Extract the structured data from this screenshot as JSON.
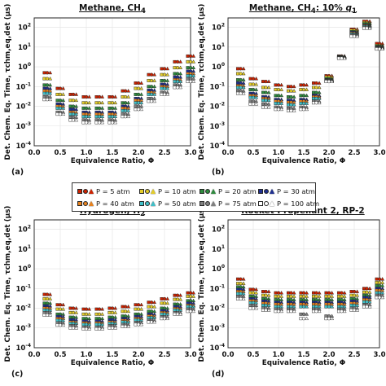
{
  "figure": {
    "shared_ylabel": "Det. Chem. Eq. Time, τchm,eq,det (μs)",
    "shared_xlabel": "Equivalence Ratio, Φ"
  },
  "panels": [
    {
      "id": "a",
      "title_html": "Methane, CH<sub>4</sub>",
      "label": "(a)"
    },
    {
      "id": "b",
      "title_html": "Methane, CH<sub>4</sub>: 10% <i>q</i><sub>1</sub>",
      "label": "(b)"
    },
    {
      "id": "c",
      "title_html": "Hydrogen, H<sub>2</sub>",
      "label": "(c)"
    },
    {
      "id": "d",
      "title_html": "Rocket Propellant 2, RP-2",
      "label": "(d)"
    }
  ],
  "legend": {
    "items": [
      {
        "label": "P = 5 atm",
        "color": "#cc2200"
      },
      {
        "label": "P = 10 atm",
        "color": "#e3cc2a"
      },
      {
        "label": "P = 20 atm",
        "color": "#2e8b3e"
      },
      {
        "label": "P = 30 atm",
        "color": "#1f2f8f"
      },
      {
        "label": "P = 40 atm",
        "color": "#e8821e"
      },
      {
        "label": "P = 50 atm",
        "color": "#40c0c8"
      },
      {
        "label": "P = 75 atm",
        "color": "#808080"
      },
      {
        "label": "P = 100 atm",
        "color": "#ffffff"
      }
    ]
  },
  "chart_data": [
    {
      "type": "scatter",
      "panel": "a",
      "title": "Methane, CH4",
      "xlabel": "Equivalence Ratio, Φ",
      "ylabel": "Det. Chem. Eq. Time, τchm,eq,det (μs)",
      "xlim": [
        0,
        3
      ],
      "ylim": [
        0.0001,
        300
      ],
      "yscale": "log",
      "grid": true,
      "x": [
        0.25,
        0.5,
        0.75,
        1.0,
        1.25,
        1.5,
        1.75,
        2.0,
        2.25,
        2.5,
        2.75,
        3.0
      ],
      "series": [
        {
          "name": "P = 5 atm",
          "values": [
            0.5,
            0.08,
            0.04,
            0.03,
            0.03,
            0.03,
            0.06,
            0.15,
            0.4,
            0.8,
            1.8,
            3.5
          ]
        },
        {
          "name": "P = 10 atm",
          "values": [
            0.25,
            0.04,
            0.02,
            0.015,
            0.015,
            0.015,
            0.03,
            0.08,
            0.2,
            0.4,
            0.9,
            1.8
          ]
        },
        {
          "name": "P = 20 atm",
          "values": [
            0.12,
            0.02,
            0.01,
            0.008,
            0.008,
            0.008,
            0.015,
            0.04,
            0.1,
            0.2,
            0.45,
            0.9
          ]
        },
        {
          "name": "P = 30 atm",
          "values": [
            0.08,
            0.013,
            0.007,
            0.005,
            0.005,
            0.005,
            0.01,
            0.025,
            0.065,
            0.13,
            0.3,
            0.6
          ]
        },
        {
          "name": "P = 40 atm",
          "values": [
            0.06,
            0.01,
            0.005,
            0.004,
            0.004,
            0.004,
            0.008,
            0.02,
            0.05,
            0.1,
            0.22,
            0.45
          ]
        },
        {
          "name": "P = 50 atm",
          "values": [
            0.045,
            0.008,
            0.004,
            0.003,
            0.003,
            0.003,
            0.006,
            0.015,
            0.04,
            0.08,
            0.18,
            0.35
          ]
        },
        {
          "name": "P = 75 atm",
          "values": [
            0.03,
            0.005,
            0.0028,
            0.002,
            0.002,
            0.002,
            0.004,
            0.01,
            0.025,
            0.05,
            0.12,
            0.25
          ]
        },
        {
          "name": "P = 100 atm",
          "values": [
            0.022,
            0.004,
            0.002,
            0.0015,
            0.0015,
            0.0015,
            0.003,
            0.007,
            0.018,
            0.04,
            0.09,
            0.18
          ]
        }
      ]
    },
    {
      "type": "scatter",
      "panel": "b",
      "title": "Methane, CH4: 10% q1",
      "xlabel": "Equivalence Ratio, Φ",
      "ylabel": "",
      "xlim": [
        0,
        3
      ],
      "ylim": [
        0.0001,
        300
      ],
      "yscale": "log",
      "grid": true,
      "x": [
        0.25,
        0.5,
        0.75,
        1.0,
        1.25,
        1.5,
        1.75,
        2.0,
        2.25,
        2.5,
        2.75,
        3.0
      ],
      "series": [
        {
          "name": "P = 5 atm",
          "values": [
            0.8,
            0.25,
            0.18,
            0.12,
            0.1,
            0.12,
            0.15,
            0.35,
            3.5,
            80,
            200,
            15
          ]
        },
        {
          "name": "P = 10 atm",
          "values": [
            0.45,
            0.13,
            0.09,
            0.07,
            0.06,
            0.07,
            0.09,
            0.3,
            3.3,
            70,
            170,
            12
          ]
        },
        {
          "name": "P = 20 atm",
          "values": [
            0.22,
            0.07,
            0.05,
            0.035,
            0.03,
            0.035,
            0.05,
            0.25,
            3.2,
            60,
            150,
            11
          ]
        },
        {
          "name": "P = 30 atm",
          "values": [
            0.15,
            0.045,
            0.03,
            0.022,
            0.02,
            0.022,
            0.035,
            0.22,
            3.1,
            55,
            130,
            10
          ]
        },
        {
          "name": "P = 40 atm",
          "values": [
            0.11,
            0.035,
            0.025,
            0.018,
            0.016,
            0.018,
            0.03,
            0.21,
            3.0,
            50,
            120,
            9.5
          ]
        },
        {
          "name": "P = 50 atm",
          "values": [
            0.09,
            0.028,
            0.02,
            0.014,
            0.012,
            0.014,
            0.025,
            0.2,
            2.9,
            45,
            110,
            9
          ]
        },
        {
          "name": "P = 75 atm",
          "values": [
            0.06,
            0.018,
            0.013,
            0.009,
            0.008,
            0.009,
            0.018,
            0.19,
            2.8,
            40,
            100,
            8.5
          ]
        },
        {
          "name": "P = 100 atm",
          "values": [
            0.045,
            0.013,
            0.009,
            0.007,
            0.006,
            0.007,
            0.015,
            0.18,
            2.7,
            35,
            90,
            8
          ]
        }
      ]
    },
    {
      "type": "scatter",
      "panel": "c",
      "title": "Hydrogen, H2",
      "xlabel": "Equivalence Ratio, Φ",
      "ylabel": "Det. Chem. Eq. Time, τchm,eq,det (μs)",
      "xlim": [
        0,
        3
      ],
      "ylim": [
        0.0001,
        300
      ],
      "yscale": "log",
      "grid": true,
      "x": [
        0.25,
        0.5,
        0.75,
        1.0,
        1.25,
        1.5,
        1.75,
        2.0,
        2.25,
        2.5,
        2.75,
        3.0
      ],
      "series": [
        {
          "name": "P = 5 atm",
          "values": [
            0.05,
            0.015,
            0.01,
            0.009,
            0.009,
            0.01,
            0.012,
            0.015,
            0.02,
            0.03,
            0.045,
            0.06
          ]
        },
        {
          "name": "P = 10 atm",
          "values": [
            0.03,
            0.009,
            0.006,
            0.005,
            0.005,
            0.006,
            0.007,
            0.009,
            0.012,
            0.018,
            0.028,
            0.04
          ]
        },
        {
          "name": "P = 20 atm",
          "values": [
            0.018,
            0.005,
            0.0035,
            0.003,
            0.003,
            0.0035,
            0.004,
            0.005,
            0.007,
            0.01,
            0.016,
            0.024
          ]
        },
        {
          "name": "P = 30 atm",
          "values": [
            0.013,
            0.0038,
            0.0026,
            0.0022,
            0.0022,
            0.0026,
            0.003,
            0.0038,
            0.005,
            0.0075,
            0.012,
            0.018
          ]
        },
        {
          "name": "P = 40 atm",
          "values": [
            0.01,
            0.003,
            0.002,
            0.0018,
            0.0018,
            0.002,
            0.0024,
            0.003,
            0.004,
            0.006,
            0.0095,
            0.014
          ]
        },
        {
          "name": "P = 50 atm",
          "values": [
            0.008,
            0.0024,
            0.0017,
            0.0015,
            0.0015,
            0.0017,
            0.002,
            0.0025,
            0.0033,
            0.005,
            0.008,
            0.012
          ]
        },
        {
          "name": "P = 75 atm",
          "values": [
            0.006,
            0.0018,
            0.0013,
            0.0011,
            0.0011,
            0.0013,
            0.0015,
            0.0019,
            0.0025,
            0.0037,
            0.006,
            0.009
          ]
        },
        {
          "name": "P = 100 atm",
          "values": [
            0.0045,
            0.0014,
            0.001,
            0.0009,
            0.0009,
            0.001,
            0.0012,
            0.0015,
            0.002,
            0.003,
            0.005,
            0.007
          ]
        }
      ]
    },
    {
      "type": "scatter",
      "panel": "d",
      "title": "Rocket Propellant 2, RP-2",
      "xlabel": "Equivalence Ratio, Φ",
      "ylabel": "",
      "xlim": [
        0,
        3
      ],
      "ylim": [
        0.0001,
        300
      ],
      "yscale": "log",
      "grid": true,
      "x": [
        0.25,
        0.5,
        0.75,
        1.0,
        1.25,
        1.5,
        1.75,
        2.0,
        2.25,
        2.5,
        2.75,
        3.0
      ],
      "series": [
        {
          "name": "P = 5 atm",
          "values": [
            0.3,
            0.09,
            0.07,
            0.06,
            0.06,
            0.06,
            0.06,
            0.06,
            0.06,
            0.07,
            0.1,
            0.3
          ]
        },
        {
          "name": "P = 10 atm",
          "values": [
            0.18,
            0.06,
            0.045,
            0.04,
            0.04,
            0.04,
            0.04,
            0.04,
            0.04,
            0.045,
            0.065,
            0.2
          ]
        },
        {
          "name": "P = 20 atm",
          "values": [
            0.12,
            0.04,
            0.03,
            0.027,
            0.027,
            0.027,
            0.027,
            0.027,
            0.027,
            0.03,
            0.045,
            0.14
          ]
        },
        {
          "name": "P = 30 atm",
          "values": [
            0.09,
            0.03,
            0.023,
            0.02,
            0.02,
            0.02,
            0.02,
            0.02,
            0.02,
            0.023,
            0.035,
            0.1
          ]
        },
        {
          "name": "P = 40 atm",
          "values": [
            0.07,
            0.024,
            0.018,
            0.016,
            0.016,
            0.016,
            0.016,
            0.016,
            0.016,
            0.018,
            0.027,
            0.08
          ]
        },
        {
          "name": "P = 50 atm",
          "values": [
            0.055,
            0.019,
            0.014,
            0.012,
            0.012,
            0.012,
            0.012,
            0.012,
            0.012,
            0.014,
            0.021,
            0.06
          ]
        },
        {
          "name": "P = 75 atm",
          "values": [
            0.04,
            0.014,
            0.01,
            0.009,
            0.009,
            0.005,
            0.009,
            0.004,
            0.009,
            0.01,
            0.015,
            0.045
          ]
        },
        {
          "name": "P = 100 atm",
          "values": [
            0.03,
            0.01,
            0.008,
            0.007,
            0.007,
            0.003,
            0.007,
            0.003,
            0.007,
            0.008,
            0.012,
            0.035
          ]
        }
      ]
    }
  ]
}
